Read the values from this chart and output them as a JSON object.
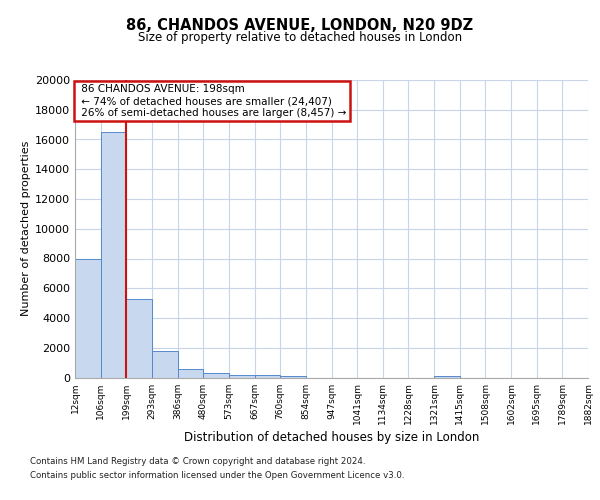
{
  "title": "86, CHANDOS AVENUE, LONDON, N20 9DZ",
  "subtitle": "Size of property relative to detached houses in London",
  "xlabel": "Distribution of detached houses by size in London",
  "ylabel": "Number of detached properties",
  "bar_color": "#c8d8ee",
  "bar_edge_color": "#5588cc",
  "background_color": "#ffffff",
  "grid_color": "#c8d4e8",
  "annotation_line_color": "#cc1111",
  "annotation_box_color": "#cc1111",
  "bins": [
    "12sqm",
    "106sqm",
    "199sqm",
    "293sqm",
    "386sqm",
    "480sqm",
    "573sqm",
    "667sqm",
    "760sqm",
    "854sqm",
    "947sqm",
    "1041sqm",
    "1134sqm",
    "1228sqm",
    "1321sqm",
    "1415sqm",
    "1508sqm",
    "1602sqm",
    "1695sqm",
    "1789sqm",
    "1882sqm"
  ],
  "values": [
    8000,
    16500,
    5300,
    1800,
    600,
    300,
    200,
    200,
    100,
    0,
    0,
    0,
    0,
    0,
    100,
    0,
    0,
    0,
    0,
    0
  ],
  "property_label": "86 CHANDOS AVENUE: 198sqm",
  "pct_smaller": 74,
  "num_smaller": "24,407",
  "pct_larger": 26,
  "num_larger": "8,457",
  "vline_bin_index": 2,
  "footer_line1": "Contains HM Land Registry data © Crown copyright and database right 2024.",
  "footer_line2": "Contains public sector information licensed under the Open Government Licence v3.0.",
  "ylim": [
    0,
    20000
  ],
  "yticks": [
    0,
    2000,
    4000,
    6000,
    8000,
    10000,
    12000,
    14000,
    16000,
    18000,
    20000
  ],
  "figsize": [
    6.0,
    5.0
  ],
  "dpi": 100
}
